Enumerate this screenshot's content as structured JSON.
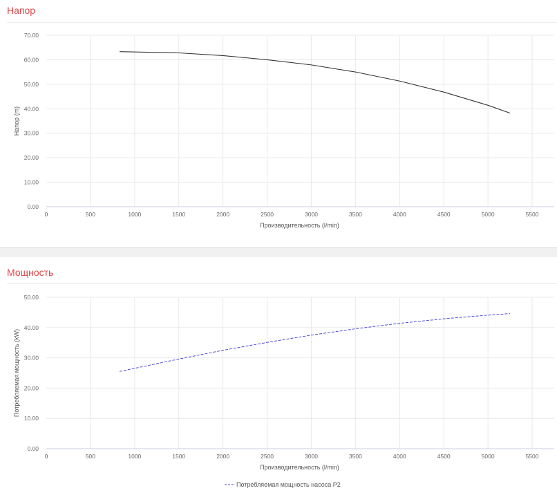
{
  "charts": {
    "head": {
      "title": "Напор"
    },
    "power": {
      "title": "Мощность"
    }
  },
  "chart_data": [
    {
      "type": "line",
      "title": "Напор",
      "xlabel": "Производительность (l/min)",
      "ylabel": "Напор (m)",
      "xlim": [
        0,
        5750
      ],
      "ylim": [
        0,
        70
      ],
      "xticks": [
        "0",
        "500",
        "1000",
        "1500",
        "2000",
        "2500",
        "3000",
        "3500",
        "4000",
        "4500",
        "5000",
        "5500"
      ],
      "yticks": [
        "0.00",
        "10.00",
        "20.00",
        "30.00",
        "40.00",
        "50.00",
        "60.00",
        "70.00"
      ],
      "grid": true,
      "series": [
        {
          "color": "#333333",
          "dash": "solid",
          "x": [
            830,
            1500,
            2000,
            2500,
            3000,
            3500,
            4000,
            4500,
            5000,
            5250
          ],
          "y": [
            63.3,
            62.8,
            61.7,
            60.0,
            57.9,
            55.0,
            51.3,
            46.8,
            41.4,
            38.2
          ]
        }
      ]
    },
    {
      "type": "line",
      "title": "Мощность",
      "xlabel": "Производительность (l/min)",
      "ylabel": "Потребляемая мощность (kW)",
      "xlim": [
        0,
        5750
      ],
      "ylim": [
        0,
        50
      ],
      "xticks": [
        "0",
        "500",
        "1000",
        "1500",
        "2000",
        "2500",
        "3000",
        "3500",
        "4000",
        "4500",
        "5000",
        "5500"
      ],
      "yticks": [
        "0.00",
        "10.00",
        "20.00",
        "30.00",
        "40.00",
        "50.00"
      ],
      "grid": true,
      "legend": "bottom-center",
      "series": [
        {
          "name": "Потребляемая мощность насоса P2",
          "color": "#4a4ad8",
          "dash": "dashed",
          "x": [
            830,
            1500,
            2000,
            2500,
            3000,
            3500,
            4000,
            4500,
            5000,
            5250
          ],
          "y": [
            25.5,
            29.6,
            32.5,
            35.1,
            37.5,
            39.6,
            41.4,
            42.9,
            44.1,
            44.6
          ]
        }
      ]
    }
  ]
}
